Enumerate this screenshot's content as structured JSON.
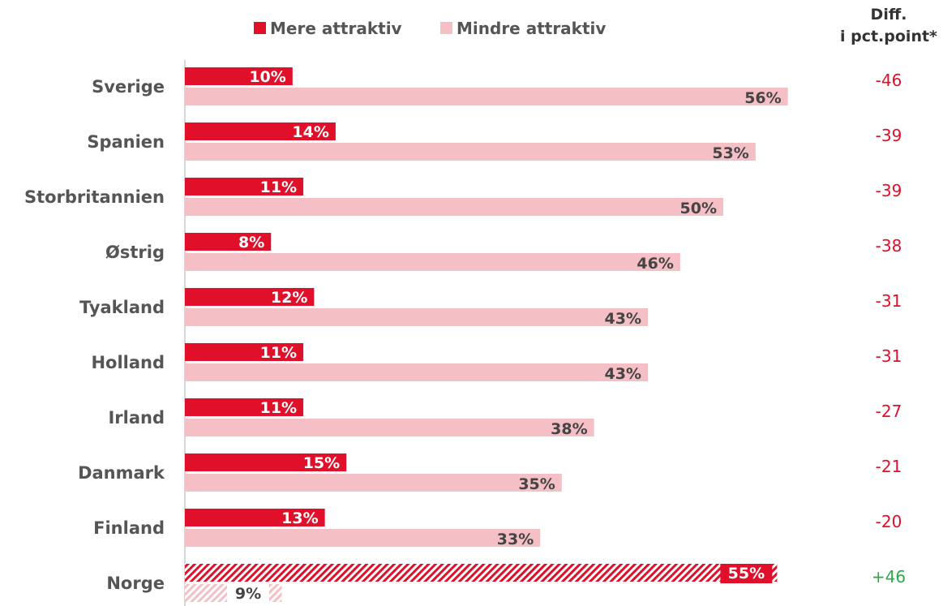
{
  "colors": {
    "more": "#e0102a",
    "less": "#f5bfc6",
    "negative": "#e0102a",
    "positive": "#2ea84a",
    "label_on_dark": "#ffffff",
    "label_on_light": "#444444",
    "axis": "#c8c8c8"
  },
  "legend": {
    "more_label": "Mere attraktiv",
    "less_label": "Mindre attraktiv"
  },
  "diff_header": {
    "line1": "Diff.",
    "line2": "i pct.point*"
  },
  "chart_data": {
    "type": "bar",
    "orientation": "horizontal",
    "categories": [
      "Sverige",
      "Spanien",
      "Storbritannien",
      "Østrig",
      "Tyakland",
      "Holland",
      "Irland",
      "Danmark",
      "Finland",
      "Norge"
    ],
    "series": [
      {
        "name": "Mere attraktiv",
        "values": [
          10,
          14,
          11,
          8,
          12,
          11,
          11,
          15,
          13,
          55
        ]
      },
      {
        "name": "Mindre attraktiv",
        "values": [
          56,
          53,
          50,
          46,
          43,
          43,
          38,
          35,
          33,
          9
        ]
      }
    ],
    "value_labels": {
      "more": [
        "10%",
        "14%",
        "11%",
        "8%",
        "12%",
        "11%",
        "11%",
        "15%",
        "13%",
        "55%"
      ],
      "less": [
        "56%",
        "53%",
        "50%",
        "46%",
        "43%",
        "43%",
        "38%",
        "35%",
        "33%",
        "9%"
      ]
    },
    "diff_labels": [
      "-46",
      "-39",
      "-39",
      "-38",
      "-31",
      "-31",
      "-27",
      "-21",
      "-20",
      "+46"
    ],
    "highlighted_category": "Norge",
    "xlim": [
      0,
      60
    ],
    "grid": false,
    "legend_position": "top"
  }
}
